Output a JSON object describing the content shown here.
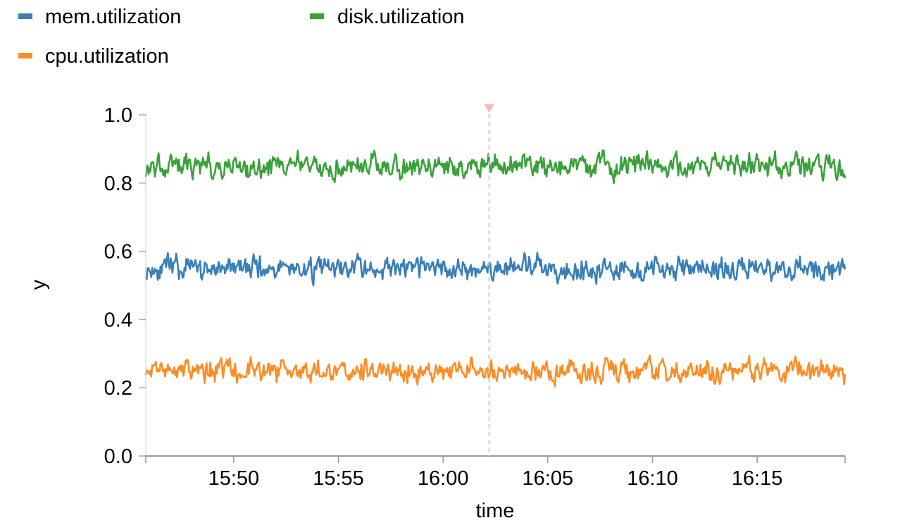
{
  "chart_data": {
    "type": "line",
    "xlabel": "time",
    "ylabel": "y",
    "ylim": [
      0,
      1.0
    ],
    "xlim": [
      "15:45:48",
      "16:19:12"
    ],
    "x_ticks": [
      "15:50",
      "15:55",
      "16:00",
      "16:05",
      "16:10",
      "16:15"
    ],
    "y_ticks": [
      "0.0",
      "0.2",
      "0.4",
      "0.6",
      "0.8",
      "1.0"
    ],
    "grid": false,
    "legend_position": "top-left",
    "cursor_time": "16:02:12",
    "series": [
      {
        "name": "mem.utilization",
        "color": "#3a7fb8",
        "mean": 0.55,
        "min": 0.5,
        "max": 0.6
      },
      {
        "name": "disk.utilization",
        "color": "#3aa13a",
        "mean": 0.85,
        "min": 0.8,
        "max": 0.9
      },
      {
        "name": "cpu.utilization",
        "color": "#ff8c24",
        "mean": 0.25,
        "min": 0.2,
        "max": 0.3
      }
    ]
  }
}
